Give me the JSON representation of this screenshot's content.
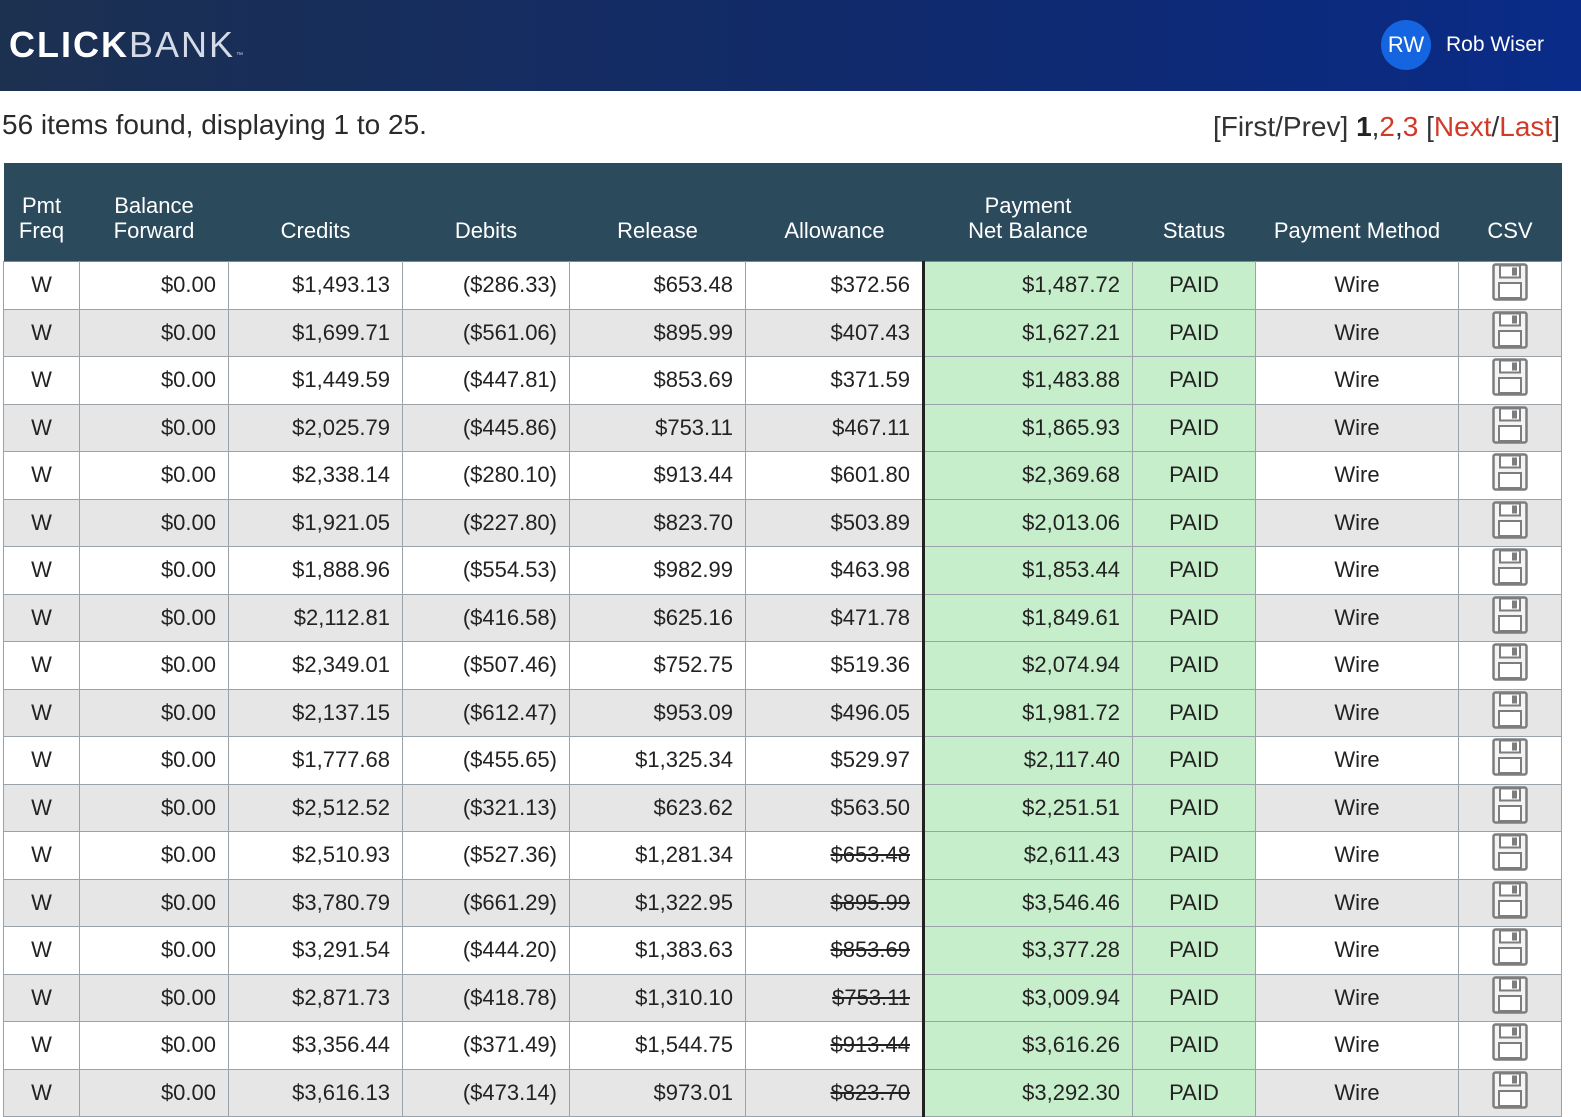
{
  "header": {
    "logo_bold": "CLICK",
    "logo_light": "BANK",
    "logo_tm": "™",
    "avatar_initials": "RW",
    "user_name": "Rob Wiser",
    "accent": "#1565e0"
  },
  "results": {
    "summary": "56 items found, displaying 1 to 25."
  },
  "pager": {
    "first_prev": "[First/Prev]",
    "page_1": "1",
    "sep1": ",",
    "page_2": "2",
    "sep2": ",",
    "page_3": "3",
    "open_bracket": "[",
    "next": "Next",
    "slash": "/",
    "last": "Last",
    "close_bracket": "]"
  },
  "table": {
    "columns": [
      {
        "line1": "Pmt",
        "line2": "Freq"
      },
      {
        "line1": "Balance",
        "line2": "Forward"
      },
      {
        "line1": "",
        "line2": "Credits"
      },
      {
        "line1": "",
        "line2": "Debits"
      },
      {
        "line1": "",
        "line2": "Release"
      },
      {
        "line1": "",
        "line2": "Allowance"
      },
      {
        "line1": "Payment",
        "line2": "Net Balance"
      },
      {
        "line1": "",
        "line2": "Status"
      },
      {
        "line1": "",
        "line2": "Payment Method"
      },
      {
        "line1": "",
        "line2": "CSV"
      }
    ],
    "rows": [
      {
        "freq": "W",
        "balance": "$0.00",
        "credits": "$1,493.13",
        "debits": "($286.33)",
        "release": "$653.48",
        "allowance": "$372.56",
        "allowance_struck": false,
        "net": "$1,487.72",
        "status": "PAID",
        "method": "Wire"
      },
      {
        "freq": "W",
        "balance": "$0.00",
        "credits": "$1,699.71",
        "debits": "($561.06)",
        "release": "$895.99",
        "allowance": "$407.43",
        "allowance_struck": false,
        "net": "$1,627.21",
        "status": "PAID",
        "method": "Wire"
      },
      {
        "freq": "W",
        "balance": "$0.00",
        "credits": "$1,449.59",
        "debits": "($447.81)",
        "release": "$853.69",
        "allowance": "$371.59",
        "allowance_struck": false,
        "net": "$1,483.88",
        "status": "PAID",
        "method": "Wire"
      },
      {
        "freq": "W",
        "balance": "$0.00",
        "credits": "$2,025.79",
        "debits": "($445.86)",
        "release": "$753.11",
        "allowance": "$467.11",
        "allowance_struck": false,
        "net": "$1,865.93",
        "status": "PAID",
        "method": "Wire"
      },
      {
        "freq": "W",
        "balance": "$0.00",
        "credits": "$2,338.14",
        "debits": "($280.10)",
        "release": "$913.44",
        "allowance": "$601.80",
        "allowance_struck": false,
        "net": "$2,369.68",
        "status": "PAID",
        "method": "Wire"
      },
      {
        "freq": "W",
        "balance": "$0.00",
        "credits": "$1,921.05",
        "debits": "($227.80)",
        "release": "$823.70",
        "allowance": "$503.89",
        "allowance_struck": false,
        "net": "$2,013.06",
        "status": "PAID",
        "method": "Wire"
      },
      {
        "freq": "W",
        "balance": "$0.00",
        "credits": "$1,888.96",
        "debits": "($554.53)",
        "release": "$982.99",
        "allowance": "$463.98",
        "allowance_struck": false,
        "net": "$1,853.44",
        "status": "PAID",
        "method": "Wire"
      },
      {
        "freq": "W",
        "balance": "$0.00",
        "credits": "$2,112.81",
        "debits": "($416.58)",
        "release": "$625.16",
        "allowance": "$471.78",
        "allowance_struck": false,
        "net": "$1,849.61",
        "status": "PAID",
        "method": "Wire"
      },
      {
        "freq": "W",
        "balance": "$0.00",
        "credits": "$2,349.01",
        "debits": "($507.46)",
        "release": "$752.75",
        "allowance": "$519.36",
        "allowance_struck": false,
        "net": "$2,074.94",
        "status": "PAID",
        "method": "Wire"
      },
      {
        "freq": "W",
        "balance": "$0.00",
        "credits": "$2,137.15",
        "debits": "($612.47)",
        "release": "$953.09",
        "allowance": "$496.05",
        "allowance_struck": false,
        "net": "$1,981.72",
        "status": "PAID",
        "method": "Wire"
      },
      {
        "freq": "W",
        "balance": "$0.00",
        "credits": "$1,777.68",
        "debits": "($455.65)",
        "release": "$1,325.34",
        "allowance": "$529.97",
        "allowance_struck": false,
        "net": "$2,117.40",
        "status": "PAID",
        "method": "Wire"
      },
      {
        "freq": "W",
        "balance": "$0.00",
        "credits": "$2,512.52",
        "debits": "($321.13)",
        "release": "$623.62",
        "allowance": "$563.50",
        "allowance_struck": false,
        "net": "$2,251.51",
        "status": "PAID",
        "method": "Wire"
      },
      {
        "freq": "W",
        "balance": "$0.00",
        "credits": "$2,510.93",
        "debits": "($527.36)",
        "release": "$1,281.34",
        "allowance": "$653.48",
        "allowance_struck": true,
        "net": "$2,611.43",
        "status": "PAID",
        "method": "Wire"
      },
      {
        "freq": "W",
        "balance": "$0.00",
        "credits": "$3,780.79",
        "debits": "($661.29)",
        "release": "$1,322.95",
        "allowance": "$895.99",
        "allowance_struck": true,
        "net": "$3,546.46",
        "status": "PAID",
        "method": "Wire"
      },
      {
        "freq": "W",
        "balance": "$0.00",
        "credits": "$3,291.54",
        "debits": "($444.20)",
        "release": "$1,383.63",
        "allowance": "$853.69",
        "allowance_struck": true,
        "net": "$3,377.28",
        "status": "PAID",
        "method": "Wire"
      },
      {
        "freq": "W",
        "balance": "$0.00",
        "credits": "$2,871.73",
        "debits": "($418.78)",
        "release": "$1,310.10",
        "allowance": "$753.11",
        "allowance_struck": true,
        "net": "$3,009.94",
        "status": "PAID",
        "method": "Wire"
      },
      {
        "freq": "W",
        "balance": "$0.00",
        "credits": "$3,356.44",
        "debits": "($371.49)",
        "release": "$1,544.75",
        "allowance": "$913.44",
        "allowance_struck": true,
        "net": "$3,616.26",
        "status": "PAID",
        "method": "Wire"
      },
      {
        "freq": "W",
        "balance": "$0.00",
        "credits": "$3,616.13",
        "debits": "($473.14)",
        "release": "$973.01",
        "allowance": "$823.70",
        "allowance_struck": true,
        "net": "$3,292.30",
        "status": "PAID",
        "method": "Wire"
      }
    ],
    "csv_icon": "floppy-disk-icon",
    "colors": {
      "header_bg": "#2b4a5c",
      "net_bg": "#c6eecb",
      "stripe_bg": "#e6e6e6",
      "link_red": "#d13a28"
    }
  }
}
